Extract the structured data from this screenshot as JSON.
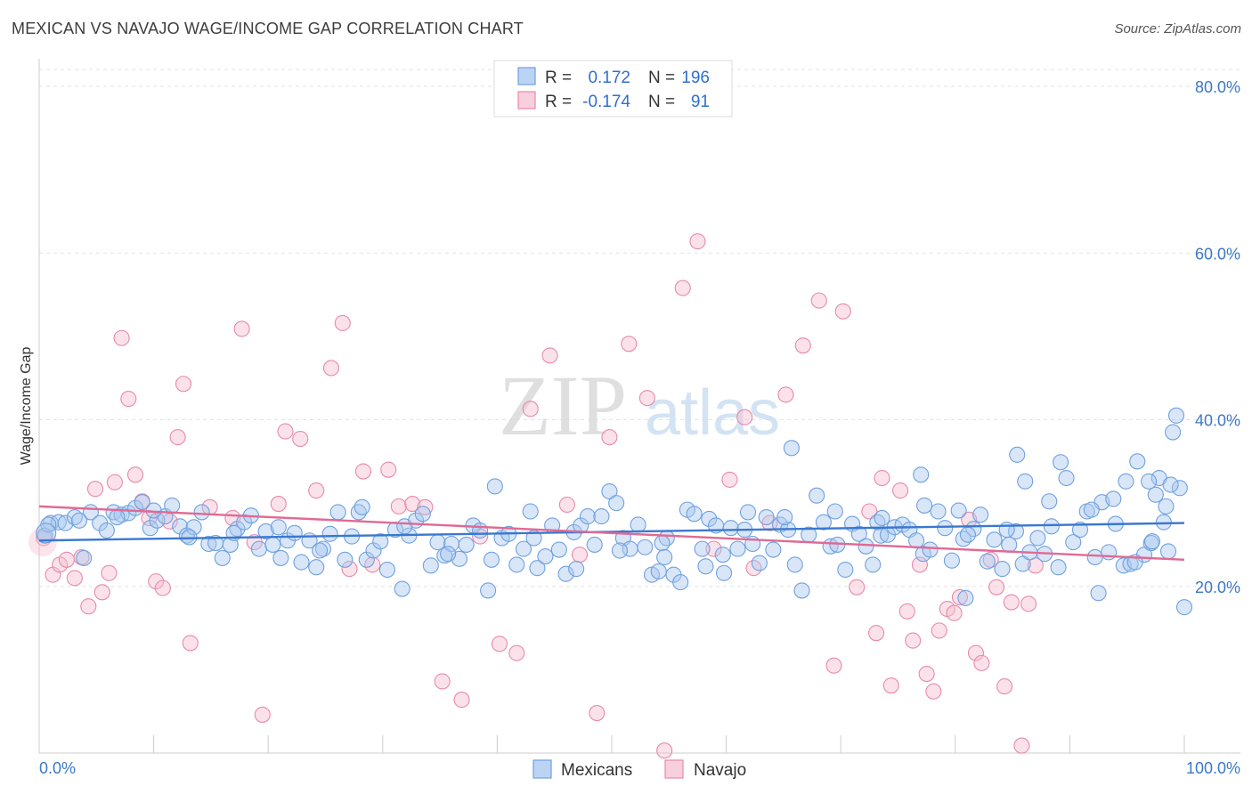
{
  "title": "MEXICAN VS NAVAJO WAGE/INCOME GAP CORRELATION CHART",
  "source": "Source: ZipAtlas.com",
  "watermark": {
    "zip": "ZIP",
    "atlas": "atlas"
  },
  "legend_top": [
    {
      "r_label": "R =",
      "r_value": "0.172",
      "n_label": "N =",
      "n_value": "196",
      "color": "#6fa1e0",
      "fill": "#bcd4f4"
    },
    {
      "r_label": "R =",
      "r_value": "-0.174",
      "n_label": "N =",
      "n_value": "91",
      "color": "#e88aa8",
      "fill": "#f8cfdc"
    }
  ],
  "legend_bottom": [
    {
      "label": "Mexicans",
      "color": "#6fa1e0",
      "fill": "#bcd4f4"
    },
    {
      "label": "Navajo",
      "color": "#e88aa8",
      "fill": "#f8cfdc"
    }
  ],
  "chart_data": {
    "type": "scatter",
    "title": "MEXICAN VS NAVAJO WAGE/INCOME GAP CORRELATION CHART",
    "xlabel": "",
    "ylabel": "Wage/Income Gap",
    "xlim": [
      0,
      100
    ],
    "ylim": [
      0,
      80
    ],
    "x_tick_labels": [
      "0.0%",
      "100.0%"
    ],
    "y_tick_labels": [
      "20.0%",
      "40.0%",
      "60.0%",
      "80.0%"
    ],
    "y_ticks": [
      20,
      40,
      60,
      80
    ],
    "grid": "horizontal dashed",
    "legend_placement": "top-center",
    "series": [
      {
        "name": "Mexicans",
        "color": "#3a78d0",
        "trend": {
          "x": [
            0,
            100
          ],
          "y": [
            25.5,
            27.6
          ]
        },
        "points": [
          [
            0.5,
            26.1
          ],
          [
            1,
            27.6
          ],
          [
            1.7,
            27.7
          ],
          [
            2.3,
            27.6
          ],
          [
            3.1,
            28.3
          ],
          [
            3.9,
            23.4
          ],
          [
            4.5,
            28.9
          ],
          [
            5.3,
            27.6
          ],
          [
            5.9,
            26.7
          ],
          [
            6.5,
            28.9
          ],
          [
            7.2,
            28.6
          ],
          [
            7.8,
            28.8
          ],
          [
            8.4,
            29.4
          ],
          [
            9,
            30.1
          ],
          [
            9.7,
            27.0
          ],
          [
            10.3,
            27.9
          ],
          [
            11,
            28.4
          ],
          [
            11.6,
            29.7
          ],
          [
            12.3,
            27.2
          ],
          [
            12.9,
            26.1
          ],
          [
            13.5,
            27.1
          ],
          [
            14.2,
            28.9
          ],
          [
            14.8,
            25.1
          ],
          [
            15.4,
            25.2
          ],
          [
            16,
            23.4
          ],
          [
            16.7,
            25.0
          ],
          [
            17.3,
            26.9
          ],
          [
            17.9,
            27.7
          ],
          [
            18.5,
            28.5
          ],
          [
            19.2,
            24.5
          ],
          [
            19.8,
            26.6
          ],
          [
            20.4,
            25.0
          ],
          [
            21.1,
            23.4
          ],
          [
            21.7,
            25.5
          ],
          [
            22.3,
            26.4
          ],
          [
            22.9,
            22.9
          ],
          [
            23.6,
            25.5
          ],
          [
            24.2,
            22.3
          ],
          [
            24.8,
            24.5
          ],
          [
            25.4,
            26.3
          ],
          [
            26.1,
            28.9
          ],
          [
            26.7,
            23.2
          ],
          [
            27.3,
            26.0
          ],
          [
            27.9,
            28.9
          ],
          [
            28.6,
            23.2
          ],
          [
            29.2,
            24.3
          ],
          [
            29.8,
            25.4
          ],
          [
            30.4,
            22.0
          ],
          [
            31.1,
            26.8
          ],
          [
            31.7,
            19.7
          ],
          [
            32.3,
            26.1
          ],
          [
            32.9,
            27.9
          ],
          [
            33.5,
            28.7
          ],
          [
            34.2,
            22.5
          ],
          [
            34.8,
            25.3
          ],
          [
            35.4,
            23.7
          ],
          [
            36,
            25.1
          ],
          [
            36.7,
            23.3
          ],
          [
            37.3,
            25.0
          ],
          [
            37.9,
            27.3
          ],
          [
            38.5,
            26.7
          ],
          [
            39.2,
            19.5
          ],
          [
            39.8,
            32.0
          ],
          [
            40.4,
            25.8
          ],
          [
            41,
            26.3
          ],
          [
            41.7,
            22.6
          ],
          [
            42.3,
            24.5
          ],
          [
            42.9,
            29.0
          ],
          [
            43.5,
            22.2
          ],
          [
            44.2,
            23.6
          ],
          [
            44.8,
            27.3
          ],
          [
            45.4,
            24.4
          ],
          [
            46,
            21.5
          ],
          [
            46.7,
            26.5
          ],
          [
            47.3,
            27.3
          ],
          [
            47.9,
            28.4
          ],
          [
            48.5,
            25.0
          ],
          [
            49.1,
            28.4
          ],
          [
            49.8,
            31.4
          ],
          [
            50.4,
            30.0
          ],
          [
            51,
            25.8
          ],
          [
            51.6,
            24.5
          ],
          [
            52.3,
            27.4
          ],
          [
            52.9,
            24.7
          ],
          [
            53.5,
            21.4
          ],
          [
            54.1,
            21.8
          ],
          [
            54.8,
            25.8
          ],
          [
            55.4,
            21.4
          ],
          [
            56,
            20.5
          ],
          [
            56.6,
            29.2
          ],
          [
            57.2,
            28.7
          ],
          [
            57.9,
            24.5
          ],
          [
            58.5,
            28.1
          ],
          [
            59.1,
            27.3
          ],
          [
            59.8,
            21.6
          ],
          [
            60.4,
            27.0
          ],
          [
            61,
            24.5
          ],
          [
            61.6,
            26.8
          ],
          [
            62.3,
            25.1
          ],
          [
            62.9,
            22.8
          ],
          [
            63.5,
            28.3
          ],
          [
            64.1,
            24.4
          ],
          [
            64.7,
            27.4
          ],
          [
            65.4,
            26.8
          ],
          [
            66,
            22.6
          ],
          [
            66.6,
            19.5
          ],
          [
            67.2,
            26.2
          ],
          [
            67.9,
            30.9
          ],
          [
            68.5,
            27.7
          ],
          [
            69.1,
            24.8
          ],
          [
            69.7,
            25.0
          ],
          [
            70.4,
            22.0
          ],
          [
            71,
            27.5
          ],
          [
            71.6,
            26.3
          ],
          [
            72.2,
            24.8
          ],
          [
            72.8,
            22.6
          ],
          [
            73.5,
            26.1
          ],
          [
            74.1,
            26.2
          ],
          [
            74.7,
            27.1
          ],
          [
            75.4,
            27.4
          ],
          [
            76,
            26.8
          ],
          [
            76.6,
            25.5
          ],
          [
            77.2,
            23.9
          ],
          [
            77.8,
            24.4
          ],
          [
            78.5,
            29.0
          ],
          [
            79.1,
            27.0
          ],
          [
            79.7,
            23.1
          ],
          [
            80.3,
            29.1
          ],
          [
            80.9,
            18.6
          ],
          [
            81.6,
            26.9
          ],
          [
            82.2,
            28.6
          ],
          [
            82.8,
            23.0
          ],
          [
            83.4,
            25.6
          ],
          [
            84.1,
            22.1
          ],
          [
            84.7,
            25.0
          ],
          [
            85.3,
            26.6
          ],
          [
            85.9,
            22.7
          ],
          [
            86.5,
            24.1
          ],
          [
            87.2,
            25.8
          ],
          [
            87.8,
            23.9
          ],
          [
            88.4,
            27.2
          ],
          [
            89,
            22.3
          ],
          [
            89.7,
            33.0
          ],
          [
            90.3,
            25.3
          ],
          [
            90.9,
            26.8
          ],
          [
            91.5,
            29.0
          ],
          [
            92.2,
            23.5
          ],
          [
            92.8,
            30.1
          ],
          [
            93.4,
            24.1
          ],
          [
            94,
            27.5
          ],
          [
            94.7,
            22.5
          ],
          [
            95.3,
            22.7
          ],
          [
            95.9,
            35.0
          ],
          [
            96.5,
            23.8
          ],
          [
            97.1,
            25.2
          ],
          [
            97.8,
            33.0
          ],
          [
            98.4,
            29.6
          ],
          [
            99,
            38.5
          ],
          [
            99.6,
            31.8
          ],
          [
            0.8,
            27.4
          ],
          [
            3.5,
            27.9
          ],
          [
            6.8,
            28.3
          ],
          [
            10,
            29.1
          ],
          [
            13.1,
            25.9
          ],
          [
            17,
            26.4
          ],
          [
            20.9,
            27.1
          ],
          [
            24.5,
            24.3
          ],
          [
            28.2,
            29.5
          ],
          [
            31.9,
            27.2
          ],
          [
            35.7,
            23.9
          ],
          [
            39.5,
            23.2
          ],
          [
            43.2,
            25.8
          ],
          [
            46.9,
            22.1
          ],
          [
            50.7,
            24.3
          ],
          [
            54.4,
            25.2
          ],
          [
            58.2,
            22.4
          ],
          [
            61.9,
            28.9
          ],
          [
            65.7,
            36.6
          ],
          [
            69.5,
            29.0
          ],
          [
            73.2,
            27.7
          ],
          [
            77,
            33.4
          ],
          [
            80.7,
            25.7
          ],
          [
            84.5,
            26.8
          ],
          [
            88.2,
            30.2
          ],
          [
            91.9,
            29.2
          ],
          [
            95.7,
            22.9
          ],
          [
            98.2,
            27.7
          ],
          [
            99.3,
            40.5
          ],
          [
            92.5,
            19.2
          ],
          [
            97.5,
            31.0
          ],
          [
            86.1,
            32.6
          ],
          [
            94.9,
            32.6
          ],
          [
            96.9,
            32.6
          ],
          [
            98.8,
            32.2
          ],
          [
            81.1,
            26.2
          ],
          [
            89.2,
            34.9
          ],
          [
            93.8,
            30.5
          ],
          [
            97.2,
            25.4
          ],
          [
            100,
            17.5
          ],
          [
            98.6,
            24.2
          ],
          [
            85.4,
            35.8
          ],
          [
            77.3,
            29.7
          ],
          [
            73.6,
            28.2
          ],
          [
            65.1,
            28.3
          ],
          [
            59.7,
            23.8
          ],
          [
            54.6,
            23.5
          ]
        ]
      },
      {
        "name": "Navajo",
        "color": "#e06a94",
        "trend": {
          "x": [
            0,
            100
          ],
          "y": [
            29.6,
            23.2
          ]
        },
        "points": [
          [
            0.4,
            25.8
          ],
          [
            1.2,
            21.4
          ],
          [
            1.8,
            22.6
          ],
          [
            2.4,
            23.2
          ],
          [
            3.1,
            21.0
          ],
          [
            3.7,
            23.5
          ],
          [
            4.3,
            17.6
          ],
          [
            4.9,
            31.7
          ],
          [
            5.5,
            19.3
          ],
          [
            6.1,
            21.6
          ],
          [
            6.6,
            32.5
          ],
          [
            7.2,
            49.8
          ],
          [
            7.8,
            42.5
          ],
          [
            8.4,
            33.4
          ],
          [
            9,
            30.2
          ],
          [
            9.6,
            28.2
          ],
          [
            10.2,
            20.6
          ],
          [
            10.8,
            19.8
          ],
          [
            11.4,
            27.8
          ],
          [
            12.1,
            37.9
          ],
          [
            12.6,
            44.3
          ],
          [
            13.2,
            13.2
          ],
          [
            14.9,
            29.5
          ],
          [
            16.9,
            28.2
          ],
          [
            17.7,
            50.9
          ],
          [
            18.8,
            25.3
          ],
          [
            19.5,
            4.6
          ],
          [
            20.9,
            29.9
          ],
          [
            21.5,
            38.6
          ],
          [
            22.8,
            37.7
          ],
          [
            24.2,
            31.5
          ],
          [
            25.5,
            46.2
          ],
          [
            26.5,
            51.6
          ],
          [
            27.1,
            22.1
          ],
          [
            28.3,
            33.8
          ],
          [
            29.1,
            22.6
          ],
          [
            30.5,
            34.0
          ],
          [
            31.4,
            29.6
          ],
          [
            32.6,
            29.9
          ],
          [
            33.7,
            29.5
          ],
          [
            35.2,
            8.6
          ],
          [
            36.9,
            6.4
          ],
          [
            38.5,
            26.0
          ],
          [
            40.2,
            13.1
          ],
          [
            41.7,
            12.0
          ],
          [
            42.9,
            41.3
          ],
          [
            44.6,
            47.7
          ],
          [
            46.1,
            29.8
          ],
          [
            47.2,
            23.8
          ],
          [
            48.7,
            4.8
          ],
          [
            49.8,
            37.9
          ],
          [
            51.5,
            49.1
          ],
          [
            53.1,
            42.6
          ],
          [
            54.6,
            0.3
          ],
          [
            56.2,
            55.8
          ],
          [
            57.5,
            61.4
          ],
          [
            58.9,
            24.5
          ],
          [
            60.3,
            32.8
          ],
          [
            61.6,
            40.3
          ],
          [
            62.4,
            22.2
          ],
          [
            63.8,
            27.6
          ],
          [
            65.2,
            43.0
          ],
          [
            66.7,
            48.9
          ],
          [
            68.1,
            54.3
          ],
          [
            69.4,
            10.5
          ],
          [
            70.2,
            53.0
          ],
          [
            71.4,
            19.9
          ],
          [
            72.5,
            29.0
          ],
          [
            73.1,
            14.4
          ],
          [
            73.6,
            33.0
          ],
          [
            74.4,
            8.1
          ],
          [
            75.2,
            31.5
          ],
          [
            75.8,
            17.0
          ],
          [
            76.3,
            13.5
          ],
          [
            76.9,
            22.6
          ],
          [
            77.5,
            9.5
          ],
          [
            78.1,
            7.4
          ],
          [
            78.6,
            14.7
          ],
          [
            79.3,
            17.3
          ],
          [
            79.9,
            16.8
          ],
          [
            80.4,
            18.7
          ],
          [
            81.2,
            28.0
          ],
          [
            81.8,
            12.0
          ],
          [
            82.3,
            10.8
          ],
          [
            83.1,
            23.2
          ],
          [
            83.6,
            19.9
          ],
          [
            84.3,
            8.0
          ],
          [
            84.9,
            18.1
          ],
          [
            85.8,
            0.9
          ],
          [
            86.4,
            17.9
          ],
          [
            87.0,
            22.5
          ]
        ]
      }
    ]
  }
}
